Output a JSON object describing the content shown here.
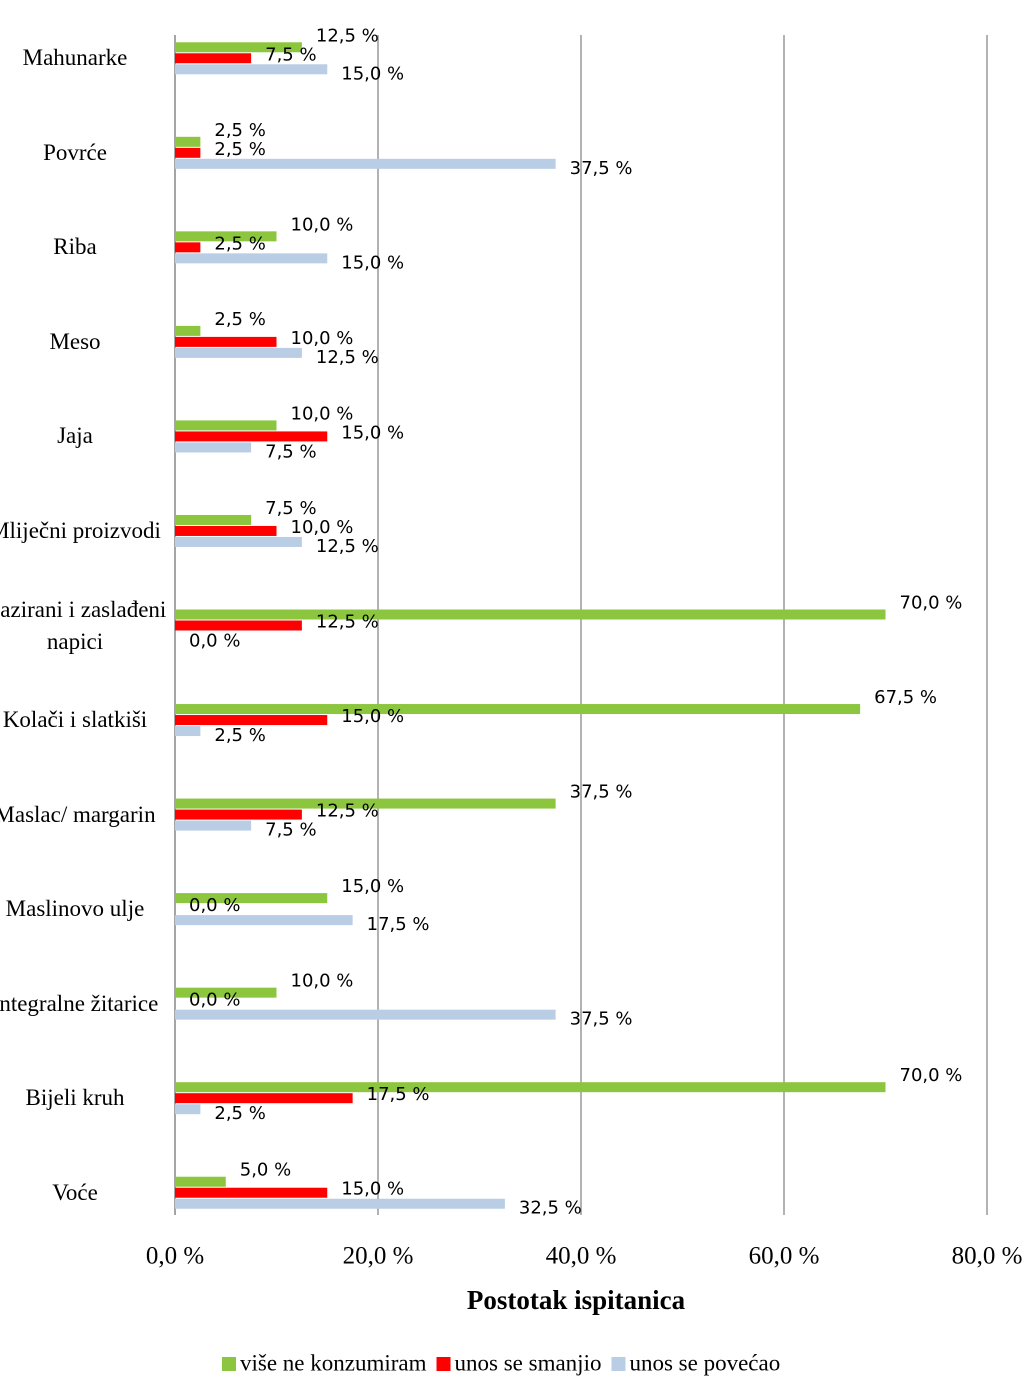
{
  "chart_data": {
    "type": "barh",
    "categories": [
      "Mahunarke",
      "Povrće",
      "Riba",
      "Meso",
      "Jaja",
      "Mliječni proizvodi",
      "Gazirani i zaslađeni napici",
      "Kolači i slatkiši",
      "Maslac/ margarin",
      "Maslinovo ulje",
      "Integralne žitarice",
      "Bijeli kruh",
      "Voće"
    ],
    "series": [
      {
        "name": "više ne konzumiram",
        "color": "#8cc63f",
        "values": [
          12.5,
          2.5,
          10.0,
          2.5,
          10.0,
          7.5,
          70.0,
          67.5,
          37.5,
          15.0,
          10.0,
          70.0,
          5.0
        ],
        "value_labels": [
          "12,5 %",
          "2,5 %",
          "10,0 %",
          "2,5 %",
          "10,0 %",
          "7,5 %",
          "70,0 %",
          "67,5 %",
          "37,5 %",
          "15,0 %",
          "10,0 %",
          "70,0 %",
          "5,0 %"
        ]
      },
      {
        "name": "unos se smanjio",
        "color": "#ff0000",
        "values": [
          7.5,
          2.5,
          2.5,
          10.0,
          15.0,
          10.0,
          12.5,
          15.0,
          12.5,
          0.0,
          0.0,
          17.5,
          15.0
        ],
        "value_labels": [
          "7,5 %",
          "2,5 %",
          "2,5 %",
          "10,0 %",
          "15,0 %",
          "10,0 %",
          "12,5 %",
          "15,0 %",
          "12,5 %",
          "0,0 %",
          "0,0 %",
          "17,5 %",
          "15,0 %"
        ]
      },
      {
        "name": "unos se povećao",
        "color": "#b9cde5",
        "values": [
          15.0,
          37.5,
          15.0,
          12.5,
          7.5,
          12.5,
          0.0,
          2.5,
          7.5,
          17.5,
          37.5,
          2.5,
          32.5
        ],
        "value_labels": [
          "15,0 %",
          "37,5 %",
          "15,0 %",
          "12,5 %",
          "7,5 %",
          "12,5 %",
          "0,0 %",
          "2,5 %",
          "7,5 %",
          "17,5 %",
          "37,5 %",
          "2,5 %",
          "32,5 %"
        ]
      }
    ],
    "xlabel": "Postotak ispitanica",
    "xlim": [
      0,
      80
    ],
    "xticks": [
      {
        "value": 0,
        "label": "0,0 %"
      },
      {
        "value": 20,
        "label": "20,0 %"
      },
      {
        "value": 40,
        "label": "40,0 %"
      },
      {
        "value": 60,
        "label": "60,0 %"
      },
      {
        "value": 80,
        "label": "80,0 %"
      }
    ],
    "grid": true,
    "legend": "bottom"
  }
}
